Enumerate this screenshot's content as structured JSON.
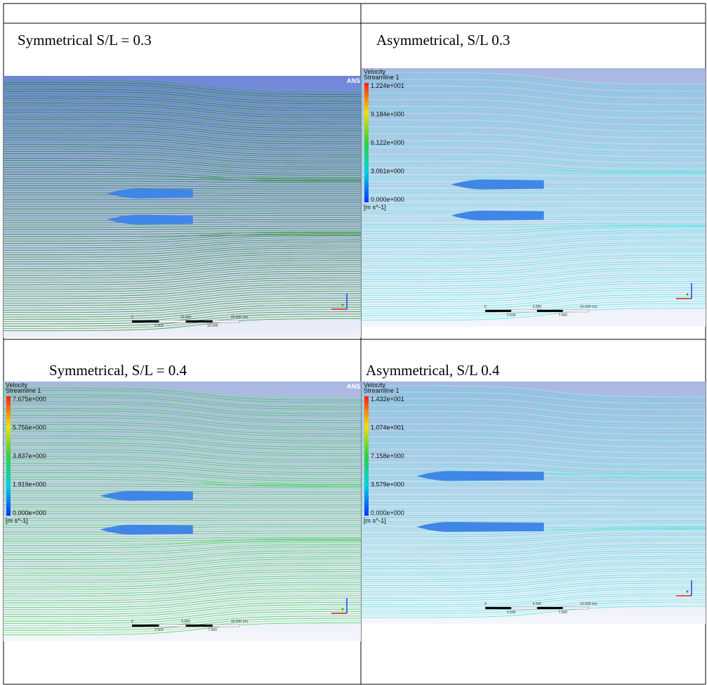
{
  "table": {
    "cells": [
      {
        "caption": "Symmetrical S/L = 0.3",
        "image": {
          "logo": "ANS",
          "scale": [
            "0",
            "10.000",
            "20.000 (m)",
            "5.000",
            "15.000"
          ]
        }
      },
      {
        "caption": "Asymmetrical, S/L  0.3",
        "image": {
          "legend_title": "Velocity",
          "legend_subtitle": "Streamline 1",
          "legend_ticks": [
            "1.224e+001",
            "9.184e+000",
            "6.122e+000",
            "3.061e+000",
            "0.000e+000"
          ],
          "unit": "[m s^-1]",
          "scale": [
            "0",
            "5.000",
            "10.000 (m)",
            "2.500",
            "7.500"
          ]
        }
      },
      {
        "caption": "Symmetrical, S/L = 0.4",
        "image": {
          "logo": "ANS",
          "legend_title": "Velocity",
          "legend_subtitle": "Streamline 1",
          "legend_ticks": [
            "7.675e+000",
            "5.756e+000",
            "3.837e+000",
            "1.919e+000",
            "0.000e+000"
          ],
          "unit": "[m s^-1]",
          "scale": [
            "0",
            "5.000",
            "10.000 (m)",
            "2.500",
            "7.500"
          ]
        }
      },
      {
        "caption": "Asymmetrical, S/L  0.4",
        "image": {
          "legend_title": "Velocity",
          "legend_subtitle": "Streamline 1",
          "legend_ticks": [
            "1.432e+001",
            "1.074e+001",
            "7.158e+000",
            "3.579e+000",
            "0.000e+000"
          ],
          "unit": "[m s^-1]",
          "scale": [
            "0",
            "5.000",
            "10.000 (m)",
            "2.500",
            "7.500"
          ]
        }
      }
    ]
  }
}
